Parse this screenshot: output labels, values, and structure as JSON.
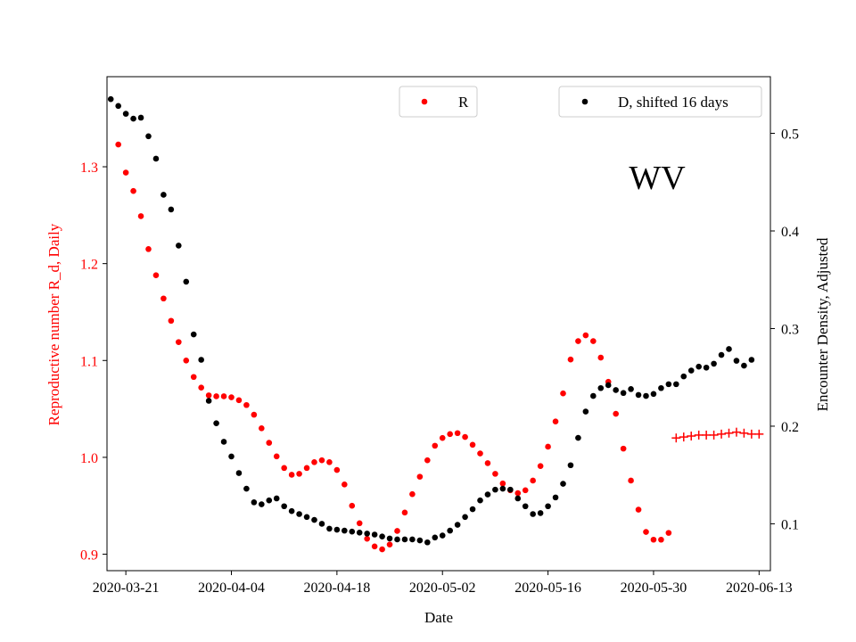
{
  "chart_data": {
    "type": "scatter",
    "state_label": "WV",
    "xlabel": "Date",
    "ylabel_left": "Reproductive number R_d, Daily",
    "ylabel_right": "Encounter Density, Adjusted",
    "x_start_date": "2020-03-20",
    "xlim": [
      -1.5,
      86.5
    ],
    "x_ticks": [
      {
        "day": 1,
        "label": "2020-03-21"
      },
      {
        "day": 15,
        "label": "2020-04-04"
      },
      {
        "day": 29,
        "label": "2020-04-18"
      },
      {
        "day": 43,
        "label": "2020-05-02"
      },
      {
        "day": 57,
        "label": "2020-05-16"
      },
      {
        "day": 71,
        "label": "2020-05-30"
      },
      {
        "day": 85,
        "label": "2020-06-13"
      }
    ],
    "ylim_left": [
      0.883,
      1.393
    ],
    "y_ticks_left": [
      {
        "value": 0.9,
        "label": "0.9"
      },
      {
        "value": 1.0,
        "label": "1.0"
      },
      {
        "value": 1.1,
        "label": "1.1"
      },
      {
        "value": 1.2,
        "label": "1.2"
      },
      {
        "value": 1.3,
        "label": "1.3"
      }
    ],
    "ylim_right": [
      0.052,
      0.558
    ],
    "y_ticks_right": [
      {
        "value": 0.1,
        "label": "0.1"
      },
      {
        "value": 0.2,
        "label": "0.2"
      },
      {
        "value": 0.3,
        "label": "0.3"
      },
      {
        "value": 0.4,
        "label": "0.4"
      },
      {
        "value": 0.5,
        "label": "0.5"
      }
    ],
    "legend": [
      {
        "name": "R",
        "color": "#ff0000",
        "position": "top-center"
      },
      {
        "name": "D, shifted 16 days",
        "color": "#000000",
        "position": "top-right"
      }
    ],
    "series": [
      {
        "name": "R",
        "axis": "left",
        "marker": "dot",
        "color": "#ff0000",
        "start_day": 0,
        "values": [
          1.323,
          1.294,
          1.275,
          1.249,
          1.215,
          1.188,
          1.164,
          1.141,
          1.119,
          1.1,
          1.083,
          1.072,
          1.064,
          1.063,
          1.063,
          1.062,
          1.059,
          1.054,
          1.044,
          1.03,
          1.015,
          1.001,
          0.989,
          0.982,
          0.983,
          0.989,
          0.995,
          0.997,
          0.995,
          0.987,
          0.972,
          0.95,
          0.932,
          0.916,
          0.908,
          0.905,
          0.91,
          0.924,
          0.943,
          0.962,
          0.98,
          0.997,
          1.012,
          1.02,
          1.024,
          1.025,
          1.021,
          1.013,
          1.004,
          0.994,
          0.983,
          0.973,
          0.966,
          0.963,
          0.966,
          0.976,
          0.991,
          1.011,
          1.037,
          1.066,
          1.101,
          1.12,
          1.126,
          1.12,
          1.103,
          1.078,
          1.045,
          1.009,
          0.976,
          0.946,
          0.923,
          0.915,
          0.915,
          0.922
        ]
      },
      {
        "name": "R (projected)",
        "axis": "left",
        "marker": "plus",
        "color": "#ff0000",
        "start_day": 74,
        "values": [
          1.02,
          1.021,
          1.022,
          1.023,
          1.023,
          1.023,
          1.024,
          1.025,
          1.026,
          1.025,
          1.024,
          1.024
        ]
      },
      {
        "name": "D, shifted 16 days",
        "axis": "right",
        "marker": "dot",
        "color": "#000000",
        "start_day": -1,
        "values": [
          0.535,
          0.528,
          0.52,
          0.515,
          0.516,
          0.497,
          0.474,
          0.437,
          0.422,
          0.385,
          0.348,
          0.294,
          0.268,
          0.226,
          0.203,
          0.184,
          0.169,
          0.152,
          0.136,
          0.122,
          0.12,
          0.124,
          0.126,
          0.118,
          0.113,
          0.11,
          0.107,
          0.104,
          0.1,
          0.095,
          0.094,
          0.093,
          0.092,
          0.091,
          0.09,
          0.089,
          0.087,
          0.085,
          0.084,
          0.084,
          0.084,
          0.083,
          0.081,
          0.086,
          0.088,
          0.093,
          0.099,
          0.107,
          0.115,
          0.124,
          0.13,
          0.135,
          0.136,
          0.135,
          0.126,
          0.118,
          0.11,
          0.111,
          0.118,
          0.127,
          0.141,
          0.16,
          0.188,
          0.215,
          0.231,
          0.239,
          0.242,
          0.237,
          0.234,
          0.238,
          0.232,
          0.231,
          0.233,
          0.239,
          0.243,
          0.243,
          0.251,
          0.257,
          0.261,
          0.26,
          0.264,
          0.273,
          0.279,
          0.267,
          0.262,
          0.268
        ]
      }
    ]
  }
}
